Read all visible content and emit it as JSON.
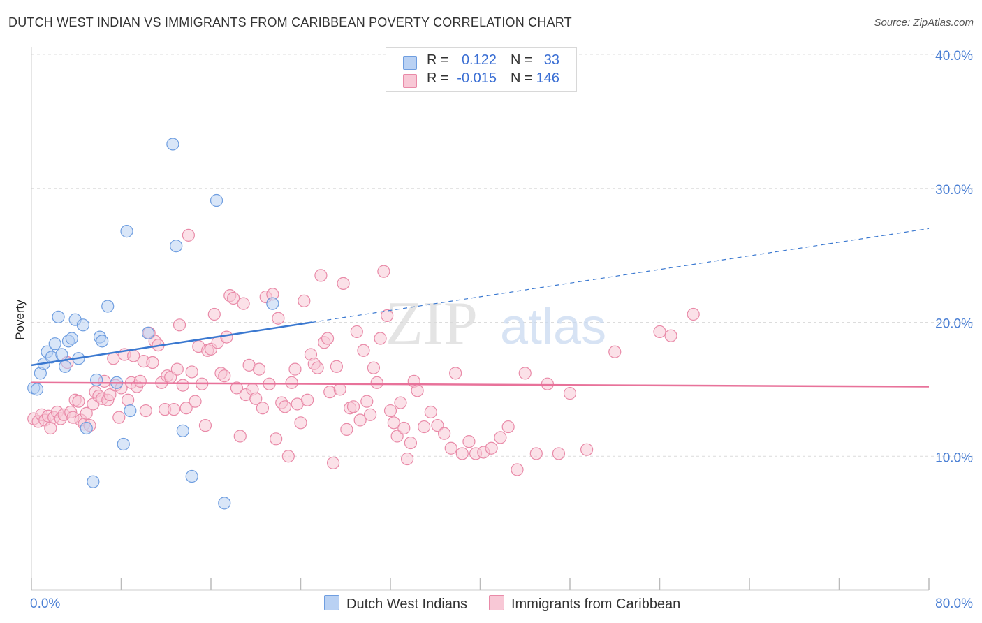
{
  "title": "DUTCH WEST INDIAN VS IMMIGRANTS FROM CARIBBEAN POVERTY CORRELATION CHART",
  "source": "Source: ZipAtlas.com",
  "watermark": {
    "zip": "ZIP",
    "atlas": "atlas"
  },
  "legend": {
    "r_label": "R =",
    "n_label": "N =",
    "series": [
      {
        "name": "Dutch West Indians",
        "r": "0.122",
        "n": "33",
        "fill": "#b9d1f3",
        "stroke": "#6f9ee0"
      },
      {
        "name": "Immigrants from Caribbean",
        "r": "-0.015",
        "n": "146",
        "fill": "#f8c8d6",
        "stroke": "#e98aa8"
      }
    ]
  },
  "chart_data": {
    "type": "scatter",
    "title": "DUTCH WEST INDIAN VS IMMIGRANTS FROM CARIBBEAN POVERTY CORRELATION CHART",
    "xlabel": "",
    "ylabel": "Poverty",
    "xlim": [
      0,
      80
    ],
    "ylim": [
      0,
      40
    ],
    "x_tick_labels": [
      "0.0%",
      "80.0%"
    ],
    "y_ticks": [
      10,
      20,
      30,
      40
    ],
    "y_tick_labels": [
      "10.0%",
      "20.0%",
      "30.0%",
      "40.0%"
    ],
    "grid": true,
    "legend_position": "top-center",
    "colors": {
      "blue_line": "#3a78d0",
      "pink_line": "#e8729a",
      "tick_text": "#4a7fd4"
    },
    "series": [
      {
        "name": "Dutch West Indians",
        "trend": {
          "x0": 0,
          "y0": 16.8,
          "x1": 25,
          "y1": 20.0,
          "dash_to_x": 80,
          "dash_to_y": 27.0
        },
        "points": [
          [
            0.2,
            15.1
          ],
          [
            0.5,
            15.0
          ],
          [
            0.8,
            16.2
          ],
          [
            1.1,
            16.9
          ],
          [
            1.4,
            17.8
          ],
          [
            1.8,
            17.4
          ],
          [
            2.1,
            18.4
          ],
          [
            2.4,
            20.4
          ],
          [
            2.7,
            17.6
          ],
          [
            3.0,
            16.7
          ],
          [
            3.3,
            18.6
          ],
          [
            3.6,
            18.8
          ],
          [
            3.9,
            20.2
          ],
          [
            4.2,
            17.3
          ],
          [
            4.6,
            19.8
          ],
          [
            4.9,
            12.1
          ],
          [
            5.5,
            8.1
          ],
          [
            5.8,
            15.7
          ],
          [
            6.1,
            18.9
          ],
          [
            6.3,
            18.6
          ],
          [
            6.8,
            21.2
          ],
          [
            7.6,
            15.5
          ],
          [
            8.2,
            10.9
          ],
          [
            8.5,
            26.8
          ],
          [
            8.8,
            13.4
          ],
          [
            10.4,
            19.2
          ],
          [
            12.6,
            33.3
          ],
          [
            12.9,
            25.7
          ],
          [
            13.5,
            11.9
          ],
          [
            14.3,
            8.5
          ],
          [
            16.5,
            29.1
          ],
          [
            17.2,
            6.5
          ],
          [
            21.5,
            21.4
          ]
        ]
      },
      {
        "name": "Immigrants from Caribbean",
        "trend": {
          "x0": 0,
          "y0": 15.5,
          "x1": 80,
          "y1": 15.2
        },
        "points": [
          [
            0.2,
            12.8
          ],
          [
            0.6,
            12.6
          ],
          [
            0.9,
            13.1
          ],
          [
            1.2,
            12.7
          ],
          [
            1.5,
            13.0
          ],
          [
            1.7,
            12.1
          ],
          [
            2.0,
            12.9
          ],
          [
            2.3,
            13.3
          ],
          [
            2.6,
            12.8
          ],
          [
            2.9,
            13.1
          ],
          [
            3.2,
            17.0
          ],
          [
            3.5,
            13.3
          ],
          [
            3.7,
            12.9
          ],
          [
            3.9,
            14.2
          ],
          [
            4.2,
            14.1
          ],
          [
            4.4,
            12.7
          ],
          [
            4.7,
            12.4
          ],
          [
            4.9,
            13.2
          ],
          [
            5.2,
            12.3
          ],
          [
            5.5,
            13.9
          ],
          [
            5.7,
            14.8
          ],
          [
            6.0,
            14.5
          ],
          [
            6.3,
            14.3
          ],
          [
            6.5,
            15.6
          ],
          [
            6.8,
            14.2
          ],
          [
            7.0,
            14.6
          ],
          [
            7.3,
            17.3
          ],
          [
            7.5,
            15.3
          ],
          [
            7.8,
            12.9
          ],
          [
            8.0,
            15.1
          ],
          [
            8.3,
            17.6
          ],
          [
            8.6,
            14.2
          ],
          [
            8.9,
            15.5
          ],
          [
            9.1,
            17.5
          ],
          [
            9.4,
            15.2
          ],
          [
            9.7,
            15.6
          ],
          [
            10.0,
            17.1
          ],
          [
            10.2,
            13.4
          ],
          [
            10.5,
            19.2
          ],
          [
            10.8,
            17.0
          ],
          [
            11.0,
            18.6
          ],
          [
            11.3,
            18.3
          ],
          [
            11.6,
            15.5
          ],
          [
            11.9,
            13.5
          ],
          [
            12.1,
            16.0
          ],
          [
            12.4,
            15.9
          ],
          [
            12.7,
            13.5
          ],
          [
            13.0,
            16.5
          ],
          [
            13.2,
            19.8
          ],
          [
            13.5,
            15.3
          ],
          [
            13.8,
            13.6
          ],
          [
            14.0,
            26.5
          ],
          [
            14.3,
            16.3
          ],
          [
            14.6,
            14.1
          ],
          [
            14.9,
            18.2
          ],
          [
            15.2,
            15.4
          ],
          [
            15.5,
            12.3
          ],
          [
            15.7,
            17.9
          ],
          [
            16.0,
            18.0
          ],
          [
            16.3,
            20.6
          ],
          [
            16.6,
            18.5
          ],
          [
            16.9,
            16.2
          ],
          [
            17.2,
            16.0
          ],
          [
            17.4,
            18.9
          ],
          [
            17.7,
            22.0
          ],
          [
            18.0,
            21.8
          ],
          [
            18.3,
            15.1
          ],
          [
            18.6,
            11.5
          ],
          [
            18.9,
            21.4
          ],
          [
            19.1,
            14.6
          ],
          [
            19.4,
            16.8
          ],
          [
            19.7,
            15.0
          ],
          [
            20.0,
            14.3
          ],
          [
            20.3,
            16.5
          ],
          [
            20.6,
            13.6
          ],
          [
            20.9,
            21.9
          ],
          [
            21.2,
            15.4
          ],
          [
            21.5,
            22.1
          ],
          [
            21.8,
            11.3
          ],
          [
            22.0,
            20.3
          ],
          [
            22.3,
            14.0
          ],
          [
            22.6,
            13.7
          ],
          [
            22.9,
            10.0
          ],
          [
            23.2,
            15.5
          ],
          [
            23.5,
            16.5
          ],
          [
            23.7,
            13.9
          ],
          [
            24.0,
            12.5
          ],
          [
            24.3,
            21.6
          ],
          [
            24.6,
            14.2
          ],
          [
            24.9,
            17.6
          ],
          [
            25.2,
            16.9
          ],
          [
            25.5,
            16.6
          ],
          [
            25.8,
            23.5
          ],
          [
            26.1,
            18.5
          ],
          [
            26.4,
            18.8
          ],
          [
            26.6,
            14.8
          ],
          [
            26.9,
            9.5
          ],
          [
            27.2,
            16.7
          ],
          [
            27.5,
            15.0
          ],
          [
            27.8,
            22.9
          ],
          [
            28.1,
            12.0
          ],
          [
            28.4,
            13.6
          ],
          [
            28.7,
            13.7
          ],
          [
            29.0,
            19.3
          ],
          [
            29.3,
            12.7
          ],
          [
            29.6,
            17.9
          ],
          [
            29.9,
            14.1
          ],
          [
            30.2,
            13.1
          ],
          [
            30.5,
            16.6
          ],
          [
            30.8,
            15.5
          ],
          [
            31.1,
            18.8
          ],
          [
            31.4,
            23.8
          ],
          [
            31.7,
            20.5
          ],
          [
            32.0,
            13.4
          ],
          [
            32.3,
            12.5
          ],
          [
            32.6,
            11.5
          ],
          [
            32.9,
            14.0
          ],
          [
            33.2,
            12.1
          ],
          [
            33.5,
            9.8
          ],
          [
            33.8,
            11.0
          ],
          [
            34.1,
            15.6
          ],
          [
            34.4,
            14.9
          ],
          [
            35.0,
            12.2
          ],
          [
            35.6,
            13.3
          ],
          [
            36.2,
            12.3
          ],
          [
            36.8,
            11.7
          ],
          [
            37.4,
            10.6
          ],
          [
            37.8,
            16.2
          ],
          [
            38.4,
            10.2
          ],
          [
            39.0,
            11.1
          ],
          [
            39.6,
            10.2
          ],
          [
            40.3,
            10.3
          ],
          [
            41.0,
            10.6
          ],
          [
            41.8,
            11.4
          ],
          [
            42.5,
            12.2
          ],
          [
            43.3,
            9.0
          ],
          [
            44.0,
            16.2
          ],
          [
            45.0,
            10.2
          ],
          [
            46.0,
            15.4
          ],
          [
            47.0,
            10.2
          ],
          [
            48.0,
            14.7
          ],
          [
            49.5,
            10.5
          ],
          [
            52.0,
            17.8
          ],
          [
            56.0,
            19.3
          ],
          [
            57.0,
            19.0
          ],
          [
            59.0,
            20.6
          ]
        ]
      }
    ]
  }
}
